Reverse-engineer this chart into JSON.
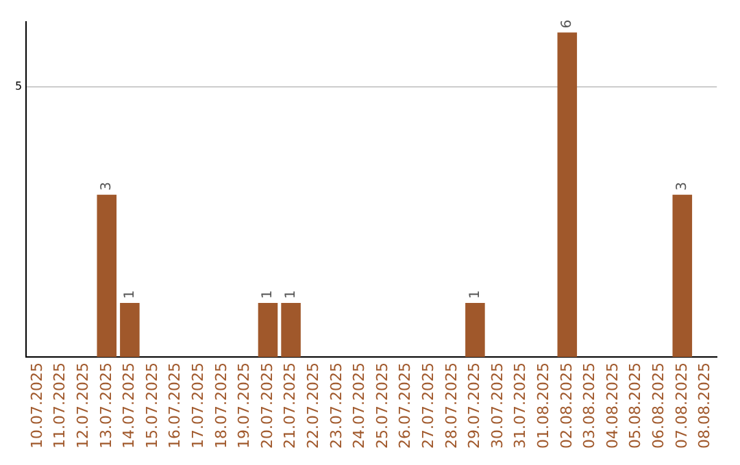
{
  "chart_data": {
    "type": "bar",
    "categories": [
      "10.07.2025",
      "11.07.2025",
      "12.07.2025",
      "13.07.2025",
      "14.07.2025",
      "15.07.2025",
      "16.07.2025",
      "17.07.2025",
      "18.07.2025",
      "19.07.2025",
      "20.07.2025",
      "21.07.2025",
      "22.07.2025",
      "23.07.2025",
      "24.07.2025",
      "25.07.2025",
      "26.07.2025",
      "27.07.2025",
      "28.07.2025",
      "29.07.2025",
      "30.07.2025",
      "31.07.2025",
      "01.08.2025",
      "02.08.2025",
      "03.08.2025",
      "04.08.2025",
      "05.08.2025",
      "06.08.2025",
      "07.08.2025",
      "08.08.2025"
    ],
    "values": [
      0,
      0,
      0,
      3,
      1,
      0,
      0,
      0,
      0,
      0,
      1,
      1,
      0,
      0,
      0,
      0,
      0,
      0,
      0,
      1,
      0,
      0,
      0,
      6,
      0,
      0,
      0,
      0,
      3,
      0
    ],
    "value_labels": [
      null,
      null,
      null,
      "3",
      "1",
      null,
      null,
      null,
      null,
      null,
      "1",
      "1",
      null,
      null,
      null,
      null,
      null,
      null,
      null,
      "1",
      null,
      null,
      null,
      "6",
      null,
      null,
      null,
      null,
      "3",
      null
    ],
    "color": "#a0582b",
    "ylim": [
      0,
      6.2
    ],
    "yticks": [
      5
    ],
    "grid": "y",
    "legend": false
  }
}
